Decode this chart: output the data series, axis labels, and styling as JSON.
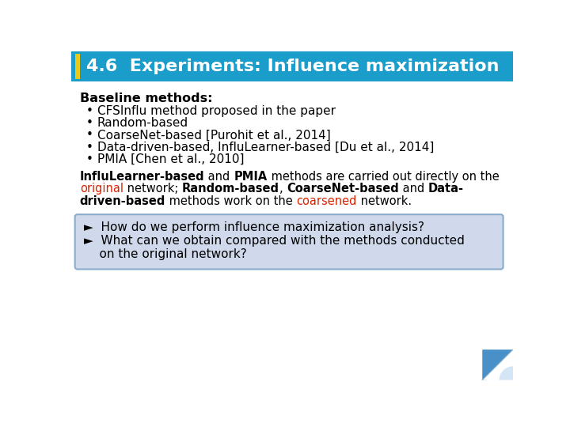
{
  "title": "4.6  Experiments: Influence maximization",
  "title_bg_color": "#1a9dca",
  "title_text_color": "#ffffff",
  "title_accent_yellow": "#e8c919",
  "title_accent_blue": "#2060a0",
  "bg_color": "#ffffff",
  "baseline_label": "Baseline methods",
  "baseline_colon": ":",
  "bullets": [
    "CFSInflu method proposed in the paper",
    "Random-based",
    "CoarseNet-based [Purohit et al., 2014]",
    "Data-driven-based, InfluLearner-based [Du et al., 2014]",
    "PMIA [Chen et al., 2010]"
  ],
  "para_line1": [
    {
      "text": "InfluLearner-based",
      "bold": true,
      "color": "#000000"
    },
    {
      "text": " and ",
      "bold": false,
      "color": "#000000"
    },
    {
      "text": "PMIA",
      "bold": true,
      "color": "#000000"
    },
    {
      "text": " methods are carried out directly on the",
      "bold": false,
      "color": "#000000"
    }
  ],
  "para_line2": [
    {
      "text": "original",
      "bold": false,
      "color": "#dd2200"
    },
    {
      "text": " network; ",
      "bold": false,
      "color": "#000000"
    },
    {
      "text": "Random-based",
      "bold": true,
      "color": "#000000"
    },
    {
      "text": ", ",
      "bold": false,
      "color": "#000000"
    },
    {
      "text": "CoarseNet-based",
      "bold": true,
      "color": "#000000"
    },
    {
      "text": " and ",
      "bold": false,
      "color": "#000000"
    },
    {
      "text": "Data-",
      "bold": true,
      "color": "#000000"
    }
  ],
  "para_line3": [
    {
      "text": "driven-based",
      "bold": true,
      "color": "#000000"
    },
    {
      "text": " methods work on the ",
      "bold": false,
      "color": "#000000"
    },
    {
      "text": "coarsened",
      "bold": false,
      "color": "#dd2200"
    },
    {
      "text": " network.",
      "bold": false,
      "color": "#000000"
    }
  ],
  "box_bg_color": "#cfd9eb",
  "box_border_color": "#8aabcc",
  "box_line1": "►  How do we perform influence maximization analysis?",
  "box_line2": "►  What can we obtain compared with the methods conducted",
  "box_line3": "    on the original network?",
  "curl_color": "#4a90c8",
  "curl_light": "#aaccee"
}
